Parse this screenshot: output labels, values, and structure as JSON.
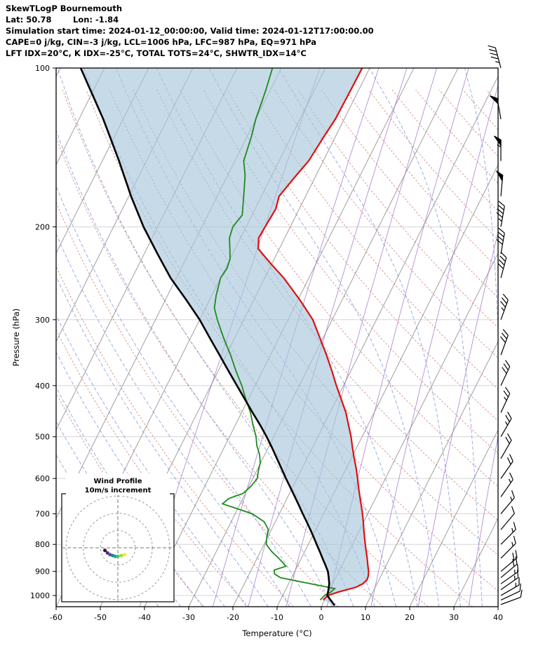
{
  "header": {
    "line1": "SkewTLogP Bournemouth",
    "lat": "Lat: 50.78",
    "lon": "Lon: -1.84",
    "times": "Simulation start time: 2024-01-12_00:00:00, Valid time: 2024-01-12T17:00:00.00",
    "indices1": "CAPE=0 j/kg, CIN=-3 j/kg, LCL=1006 hPa, LFC=987 hPa, EQ=971 hPa",
    "indices2": "LFT IDX=20°C, K IDX=-25°C, TOTAL TOTS=24°C, SHWTR_IDX=14°C"
  },
  "chart_data": {
    "type": "skewt-logp",
    "title": "SkewTLogP Bournemouth",
    "station": "Bournemouth",
    "lat": 50.78,
    "lon": -1.84,
    "xlabel": "Temperature (°C)",
    "ylabel": "Pressure (hPa)",
    "x_ticks": [
      -60,
      -50,
      -40,
      -30,
      -20,
      -10,
      0,
      10,
      20,
      30,
      40
    ],
    "p_ticks": [
      100,
      200,
      300,
      400,
      500,
      600,
      700,
      800,
      900,
      1000
    ],
    "p_range": [
      100,
      1050
    ],
    "t_range": [
      -60,
      40
    ],
    "skew": 0.5,
    "colors": {
      "isotherm": "#a0a0a0",
      "isobar": "#cfcfcf",
      "dry_adiabat": "#c96a6a",
      "moist_adiabat": "#7b8fd4",
      "mixing_ratio": "#9e6bc9",
      "fill": "#a9c6dc",
      "temperature": "#e01010",
      "dewpoint": "#1e8a1e",
      "parcel": "#000000"
    },
    "background": {
      "isotherm_min": -120,
      "isotherm_max": 40,
      "isotherm_step": 10,
      "dry_adiabats_thetaC": {
        "min": -30,
        "max": 200,
        "step": 10
      },
      "moist_adiabats_t0C": {
        "min": -40,
        "max": 45,
        "step": 5
      },
      "mixing_ratios_gkg": [
        0.1,
        0.5,
        1,
        2,
        4,
        8,
        16,
        32
      ]
    },
    "series": {
      "temperature": {
        "points": [
          [
            1020,
            -0.3
          ],
          [
            1000,
            0.2
          ],
          [
            985,
            2.2
          ],
          [
            965,
            5.6
          ],
          [
            950,
            6.8
          ],
          [
            935,
            7.3
          ],
          [
            920,
            7.2
          ],
          [
            900,
            6.7
          ],
          [
            875,
            5.8
          ],
          [
            850,
            4.9
          ],
          [
            825,
            3.9
          ],
          [
            800,
            2.9
          ],
          [
            775,
            1.9
          ],
          [
            750,
            0.9
          ],
          [
            725,
            -0.1
          ],
          [
            700,
            -1.2
          ],
          [
            675,
            -2.4
          ],
          [
            650,
            -3.7
          ],
          [
            625,
            -5.0
          ],
          [
            600,
            -6.3
          ],
          [
            575,
            -7.7
          ],
          [
            550,
            -9.3
          ],
          [
            525,
            -10.9
          ],
          [
            500,
            -12.5
          ],
          [
            475,
            -14.4
          ],
          [
            450,
            -16.4
          ],
          [
            425,
            -18.9
          ],
          [
            400,
            -21.6
          ],
          [
            375,
            -24.3
          ],
          [
            350,
            -27.3
          ],
          [
            325,
            -30.7
          ],
          [
            300,
            -34.4
          ],
          [
            275,
            -39.6
          ],
          [
            250,
            -45.7
          ],
          [
            235,
            -50.2
          ],
          [
            220,
            -54.8
          ],
          [
            210,
            -55.9
          ],
          [
            200,
            -55.7
          ],
          [
            185,
            -55.3
          ],
          [
            175,
            -56.0
          ],
          [
            160,
            -54.5
          ],
          [
            150,
            -53.3
          ],
          [
            135,
            -52.6
          ],
          [
            125,
            -52.0
          ],
          [
            110,
            -51.8
          ],
          [
            100,
            -51.7
          ]
        ]
      },
      "dewpoint": {
        "points": [
          [
            1020,
            -1.0
          ],
          [
            1000,
            -0.5
          ],
          [
            985,
            0.5
          ],
          [
            970,
            1.0
          ],
          [
            955,
            -3.5
          ],
          [
            940,
            -8.0
          ],
          [
            925,
            -12.5
          ],
          [
            910,
            -14.3
          ],
          [
            895,
            -14.8
          ],
          [
            880,
            -12.6
          ],
          [
            865,
            -13.8
          ],
          [
            850,
            -15.1
          ],
          [
            825,
            -17.5
          ],
          [
            800,
            -19.5
          ],
          [
            775,
            -20.2
          ],
          [
            750,
            -20.7
          ],
          [
            725,
            -22.5
          ],
          [
            700,
            -26.1
          ],
          [
            685,
            -30.0
          ],
          [
            670,
            -34.0
          ],
          [
            655,
            -33.2
          ],
          [
            640,
            -30.5
          ],
          [
            620,
            -29.5
          ],
          [
            600,
            -29.0
          ],
          [
            580,
            -29.6
          ],
          [
            560,
            -30.1
          ],
          [
            540,
            -31.2
          ],
          [
            520,
            -32.8
          ],
          [
            500,
            -34.0
          ],
          [
            475,
            -36.0
          ],
          [
            450,
            -38.0
          ],
          [
            425,
            -40.5
          ],
          [
            400,
            -43.0
          ],
          [
            375,
            -46.0
          ],
          [
            350,
            -49.0
          ],
          [
            325,
            -52.5
          ],
          [
            300,
            -56.0
          ],
          [
            285,
            -58.0
          ],
          [
            270,
            -59.0
          ],
          [
            250,
            -60.0
          ],
          [
            240,
            -59.6
          ],
          [
            230,
            -60.0
          ],
          [
            220,
            -61.2
          ],
          [
            210,
            -62.5
          ],
          [
            200,
            -63.0
          ],
          [
            190,
            -62.2
          ],
          [
            175,
            -64.0
          ],
          [
            160,
            -66.0
          ],
          [
            150,
            -68.0
          ],
          [
            135,
            -69.0
          ],
          [
            125,
            -70.0
          ],
          [
            110,
            -71.0
          ],
          [
            100,
            -72.0
          ]
        ]
      },
      "parcel": {
        "points": [
          [
            1045,
            2.9
          ],
          [
            1000,
            0.1
          ],
          [
            975,
            -0.3
          ],
          [
            950,
            -0.8
          ],
          [
            925,
            -1.6
          ],
          [
            900,
            -2.5
          ],
          [
            875,
            -3.8
          ],
          [
            850,
            -5.2
          ],
          [
            825,
            -6.6
          ],
          [
            800,
            -8.1
          ],
          [
            775,
            -9.6
          ],
          [
            750,
            -11.2
          ],
          [
            725,
            -12.9
          ],
          [
            700,
            -14.7
          ],
          [
            675,
            -16.5
          ],
          [
            650,
            -18.4
          ],
          [
            625,
            -20.4
          ],
          [
            600,
            -22.5
          ],
          [
            575,
            -24.6
          ],
          [
            550,
            -26.8
          ],
          [
            525,
            -29.1
          ],
          [
            500,
            -31.6
          ],
          [
            475,
            -34.4
          ],
          [
            450,
            -37.5
          ],
          [
            425,
            -40.7
          ],
          [
            400,
            -44.1
          ],
          [
            375,
            -47.7
          ],
          [
            350,
            -51.5
          ],
          [
            325,
            -55.6
          ],
          [
            300,
            -60.0
          ],
          [
            275,
            -65.3
          ],
          [
            250,
            -71.3
          ],
          [
            225,
            -77.0
          ],
          [
            200,
            -83.2
          ],
          [
            175,
            -89.5
          ],
          [
            150,
            -96.2
          ],
          [
            125,
            -104.5
          ],
          [
            100,
            -115.4
          ]
        ]
      }
    },
    "wind_barbs": [
      {
        "p": 1040,
        "kt": 10,
        "dir": 70
      },
      {
        "p": 1020,
        "kt": 10,
        "dir": 65
      },
      {
        "p": 1000,
        "kt": 15,
        "dir": 60
      },
      {
        "p": 975,
        "kt": 15,
        "dir": 55
      },
      {
        "p": 950,
        "kt": 15,
        "dir": 55
      },
      {
        "p": 925,
        "kt": 20,
        "dir": 50
      },
      {
        "p": 900,
        "kt": 20,
        "dir": 50
      },
      {
        "p": 850,
        "kt": 15,
        "dir": 45
      },
      {
        "p": 800,
        "kt": 15,
        "dir": 45
      },
      {
        "p": 750,
        "kt": 10,
        "dir": 40
      },
      {
        "p": 700,
        "kt": 15,
        "dir": 40
      },
      {
        "p": 650,
        "kt": 15,
        "dir": 35
      },
      {
        "p": 600,
        "kt": 20,
        "dir": 35
      },
      {
        "p": 550,
        "kt": 20,
        "dir": 30
      },
      {
        "p": 500,
        "kt": 25,
        "dir": 30
      },
      {
        "p": 450,
        "kt": 25,
        "dir": 25
      },
      {
        "p": 400,
        "kt": 30,
        "dir": 25
      },
      {
        "p": 350,
        "kt": 30,
        "dir": 20
      },
      {
        "p": 300,
        "kt": 35,
        "dir": 20
      },
      {
        "p": 250,
        "kt": 40,
        "dir": 15
      },
      {
        "p": 225,
        "kt": 40,
        "dir": 10
      },
      {
        "p": 200,
        "kt": 45,
        "dir": 10
      },
      {
        "p": 175,
        "kt": 50,
        "dir": 5
      },
      {
        "p": 150,
        "kt": 55,
        "dir": 0
      },
      {
        "p": 125,
        "kt": 50,
        "dir": 350
      },
      {
        "p": 100,
        "kt": 45,
        "dir": 345
      }
    ],
    "hodograph": {
      "title1": "Wind Profile",
      "title2": "10m/s increment",
      "rings_ms": [
        10,
        20,
        30
      ],
      "points": [
        {
          "u": -7.5,
          "v": -1.5,
          "c": "#440154"
        },
        {
          "u": -6.0,
          "v": -3.0,
          "c": "#46327e"
        },
        {
          "u": -4.5,
          "v": -4.0,
          "c": "#365c8d"
        },
        {
          "u": -3.0,
          "v": -4.5,
          "c": "#277f8e"
        },
        {
          "u": -1.5,
          "v": -5.0,
          "c": "#1fa187"
        },
        {
          "u": 0.0,
          "v": -5.0,
          "c": "#4ac16d"
        },
        {
          "u": 2.0,
          "v": -4.5,
          "c": "#a0da39"
        },
        {
          "u": 4.0,
          "v": -4.0,
          "c": "#fde725"
        }
      ]
    }
  }
}
